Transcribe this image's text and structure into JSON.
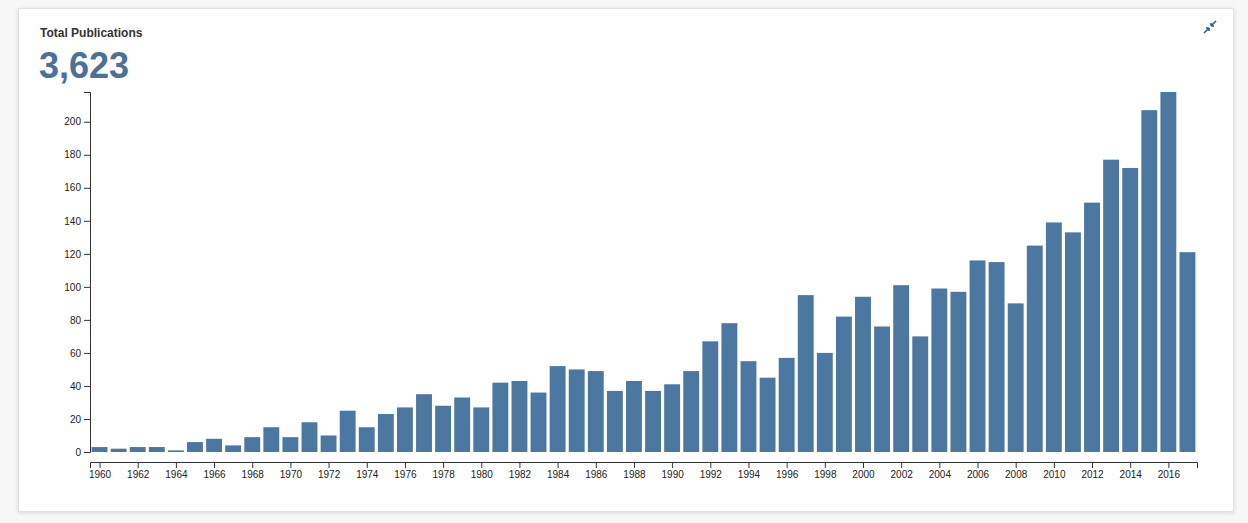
{
  "chart_data": {
    "type": "bar",
    "title": "Total Publications",
    "subtitle": "3,623",
    "x": [
      1960,
      1961,
      1962,
      1963,
      1964,
      1965,
      1966,
      1967,
      1968,
      1969,
      1970,
      1971,
      1972,
      1973,
      1974,
      1975,
      1976,
      1977,
      1978,
      1979,
      1980,
      1981,
      1982,
      1983,
      1984,
      1985,
      1986,
      1987,
      1988,
      1989,
      1990,
      1991,
      1992,
      1993,
      1994,
      1995,
      1996,
      1997,
      1998,
      1999,
      2000,
      2001,
      2002,
      2003,
      2004,
      2005,
      2006,
      2007,
      2008,
      2009,
      2010,
      2011,
      2012,
      2013,
      2014,
      2015,
      2016,
      2017
    ],
    "values": [
      3,
      2,
      3,
      3,
      1,
      6,
      8,
      4,
      9,
      15,
      9,
      18,
      10,
      25,
      15,
      23,
      27,
      35,
      28,
      33,
      27,
      42,
      43,
      36,
      52,
      50,
      49,
      37,
      43,
      37,
      41,
      49,
      67,
      78,
      55,
      45,
      57,
      95,
      60,
      82,
      94,
      76,
      101,
      70,
      99,
      97,
      116,
      115,
      90,
      125,
      139,
      133,
      151,
      177,
      172,
      207,
      218,
      121
    ],
    "color": "#4c77a0",
    "xlim": [
      1959.5,
      2017.5
    ],
    "xticks": [
      1960,
      1962,
      1964,
      1966,
      1968,
      1970,
      1972,
      1974,
      1976,
      1978,
      1980,
      1982,
      1984,
      1986,
      1988,
      1990,
      1992,
      1994,
      1996,
      1998,
      2000,
      2002,
      2004,
      2006,
      2008,
      2010,
      2012,
      2014,
      2016
    ],
    "ylim": [
      0,
      218
    ],
    "yticks": [
      0,
      20,
      40,
      60,
      80,
      100,
      120,
      140,
      160,
      180,
      200
    ],
    "grid": false
  }
}
